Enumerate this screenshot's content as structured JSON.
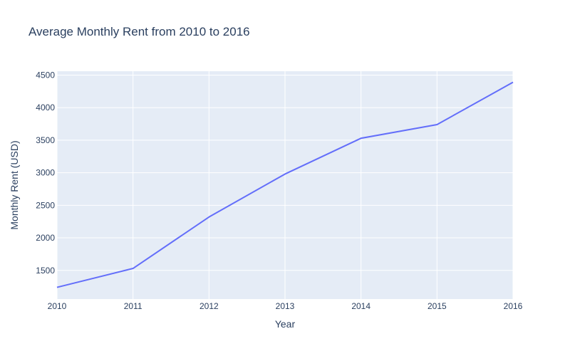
{
  "chart_data": {
    "type": "line",
    "title": "Average Monthly Rent from 2010 to 2016",
    "xlabel": "Year",
    "ylabel": "Monthly Rent (USD)",
    "x": [
      2010,
      2011,
      2012,
      2013,
      2014,
      2015,
      2016
    ],
    "series": [
      {
        "values": [
          1240,
          1530,
          2320,
          2980,
          3530,
          3740,
          4390
        ]
      }
    ],
    "xlim": [
      2010,
      2016
    ],
    "ylim": [
      1060,
      4560
    ],
    "x_ticks": [
      "2010",
      "2011",
      "2012",
      "2013",
      "2014",
      "2015",
      "2016"
    ],
    "y_ticks": [
      "1500",
      "2000",
      "2500",
      "3000",
      "3500",
      "4000",
      "4500"
    ],
    "grid": true,
    "colors": {
      "line": "#636efa",
      "plot_bg": "#e5ecf6",
      "grid": "#ffffff",
      "text": "#2a3f5f"
    }
  }
}
